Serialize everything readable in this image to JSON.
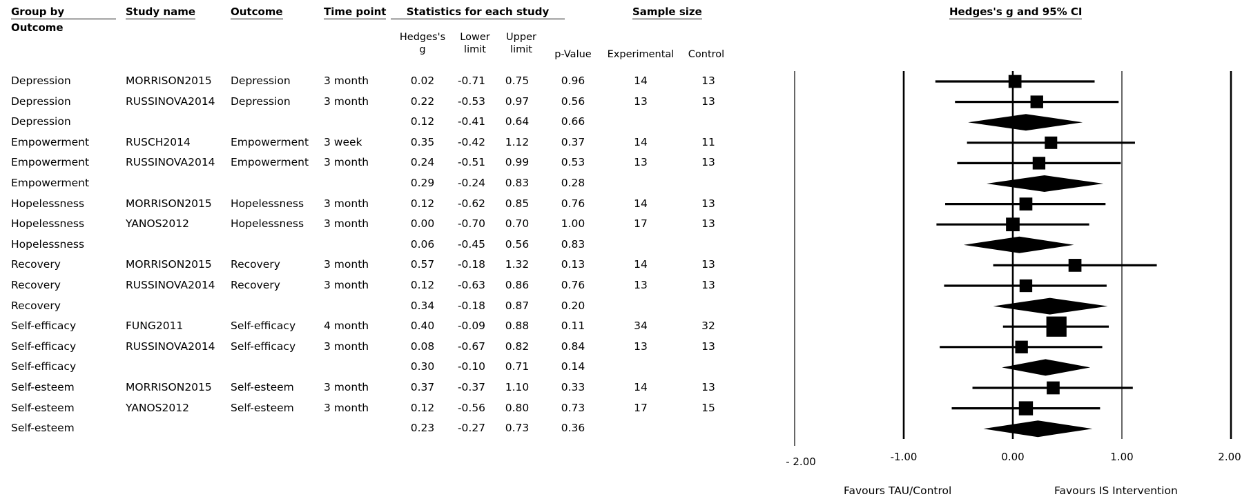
{
  "headers": {
    "group_by": "Group by",
    "outcome_sub": "Outcome",
    "study_name": "Study name",
    "outcome": "Outcome",
    "time_point": "Time point",
    "statistics": "Statistics for each study",
    "sample_size": "Sample size",
    "plot_title": "Hedges's g and 95% CI"
  },
  "subheaders": {
    "hedges": "Hedges's\ng",
    "lower": "Lower\nlimit",
    "upper": "Upper\nlimit",
    "pvalue": "p-Value",
    "experimental": "Experimental",
    "control": "Control"
  },
  "rows": [
    {
      "group": "Depression",
      "study": "MORRISON2015",
      "outcome": "Depression",
      "time": "3 month",
      "g": "0.02",
      "lower": "-0.71",
      "upper": "0.75",
      "p": "0.96",
      "exp": "14",
      "ctrl": "13",
      "summary": false
    },
    {
      "group": "Depression",
      "study": "RUSSINOVA2014",
      "outcome": "Depression",
      "time": "3 month",
      "g": "0.22",
      "lower": "-0.53",
      "upper": "0.97",
      "p": "0.56",
      "exp": "13",
      "ctrl": "13",
      "summary": false
    },
    {
      "group": "Depression",
      "study": "",
      "outcome": "",
      "time": "",
      "g": "0.12",
      "lower": "-0.41",
      "upper": "0.64",
      "p": "0.66",
      "exp": "",
      "ctrl": "",
      "summary": true
    },
    {
      "group": "Empowerment",
      "study": "RUSCH2014",
      "outcome": "Empowerment",
      "time": "3 week",
      "g": "0.35",
      "lower": "-0.42",
      "upper": "1.12",
      "p": "0.37",
      "exp": "14",
      "ctrl": "11",
      "summary": false
    },
    {
      "group": "Empowerment",
      "study": "RUSSINOVA2014",
      "outcome": "Empowerment",
      "time": "3 month",
      "g": "0.24",
      "lower": "-0.51",
      "upper": "0.99",
      "p": "0.53",
      "exp": "13",
      "ctrl": "13",
      "summary": false
    },
    {
      "group": "Empowerment",
      "study": "",
      "outcome": "",
      "time": "",
      "g": "0.29",
      "lower": "-0.24",
      "upper": "0.83",
      "p": "0.28",
      "exp": "",
      "ctrl": "",
      "summary": true
    },
    {
      "group": "Hopelessness",
      "study": "MORRISON2015",
      "outcome": "Hopelessness",
      "time": "3 month",
      "g": "0.12",
      "lower": "-0.62",
      "upper": "0.85",
      "p": "0.76",
      "exp": "14",
      "ctrl": "13",
      "summary": false
    },
    {
      "group": "Hopelessness",
      "study": "YANOS2012",
      "outcome": "Hopelessness",
      "time": "3 month",
      "g": "0.00",
      "lower": "-0.70",
      "upper": "0.70",
      "p": "1.00",
      "exp": "17",
      "ctrl": "13",
      "summary": false
    },
    {
      "group": "Hopelessness",
      "study": "",
      "outcome": "",
      "time": "",
      "g": "0.06",
      "lower": "-0.45",
      "upper": "0.56",
      "p": "0.83",
      "exp": "",
      "ctrl": "",
      "summary": true
    },
    {
      "group": "Recovery",
      "study": "MORRISON2015",
      "outcome": "Recovery",
      "time": "3 month",
      "g": "0.57",
      "lower": "-0.18",
      "upper": "1.32",
      "p": "0.13",
      "exp": "14",
      "ctrl": "13",
      "summary": false
    },
    {
      "group": "Recovery",
      "study": "RUSSINOVA2014",
      "outcome": "Recovery",
      "time": "3 month",
      "g": "0.12",
      "lower": "-0.63",
      "upper": "0.86",
      "p": "0.76",
      "exp": "13",
      "ctrl": "13",
      "summary": false
    },
    {
      "group": "Recovery",
      "study": "",
      "outcome": "",
      "time": "",
      "g": "0.34",
      "lower": "-0.18",
      "upper": "0.87",
      "p": "0.20",
      "exp": "",
      "ctrl": "",
      "summary": true
    },
    {
      "group": "Self-efficacy",
      "study": "FUNG2011",
      "outcome": "Self-efficacy",
      "time": "4 month",
      "g": "0.40",
      "lower": "-0.09",
      "upper": "0.88",
      "p": "0.11",
      "exp": "34",
      "ctrl": "32",
      "summary": false
    },
    {
      "group": "Self-efficacy",
      "study": "RUSSINOVA2014",
      "outcome": "Self-efficacy",
      "time": "3 month",
      "g": "0.08",
      "lower": "-0.67",
      "upper": "0.82",
      "p": "0.84",
      "exp": "13",
      "ctrl": "13",
      "summary": false
    },
    {
      "group": "Self-efficacy",
      "study": "",
      "outcome": "",
      "time": "",
      "g": "0.30",
      "lower": "-0.10",
      "upper": "0.71",
      "p": "0.14",
      "exp": "",
      "ctrl": "",
      "summary": true
    },
    {
      "group": "Self-esteem",
      "study": "MORRISON2015",
      "outcome": "Self-esteem",
      "time": "3 month",
      "g": "0.37",
      "lower": "-0.37",
      "upper": "1.10",
      "p": "0.33",
      "exp": "14",
      "ctrl": "13",
      "summary": false
    },
    {
      "group": "Self-esteem",
      "study": "YANOS2012",
      "outcome": "Self-esteem",
      "time": "3 month",
      "g": "0.12",
      "lower": "-0.56",
      "upper": "0.80",
      "p": "0.73",
      "exp": "17",
      "ctrl": "15",
      "summary": false
    },
    {
      "group": "Self-esteem",
      "study": "",
      "outcome": "",
      "time": "",
      "g": "0.23",
      "lower": "-0.27",
      "upper": "0.73",
      "p": "0.36",
      "exp": "",
      "ctrl": "",
      "summary": true
    }
  ],
  "axis": {
    "tick_labels": [
      "- 2.00",
      "-1.00",
      "0.00",
      "1.00",
      "2.00"
    ],
    "tick_values": [
      -2,
      -1,
      0,
      1,
      2
    ],
    "xlim": [
      -2,
      2
    ]
  },
  "footer": {
    "left": "Favours TAU/Control",
    "right": "Favours IS Intervention"
  },
  "chart_data": {
    "type": "forest",
    "title": "Hedges's g and 95% CI",
    "xlim": [
      -2,
      2
    ],
    "x_ticks": [
      -2,
      -1,
      0,
      1,
      2
    ],
    "reference_line": 0,
    "categories": [
      "Depression",
      "Depression",
      "Depression",
      "Empowerment",
      "Empowerment",
      "Empowerment",
      "Hopelessness",
      "Hopelessness",
      "Hopelessness",
      "Recovery",
      "Recovery",
      "Recovery",
      "Self-efficacy",
      "Self-efficacy",
      "Self-efficacy",
      "Self-esteem",
      "Self-esteem",
      "Self-esteem"
    ],
    "estimates": [
      0.02,
      0.22,
      0.12,
      0.35,
      0.24,
      0.29,
      0.12,
      0.0,
      0.06,
      0.57,
      0.12,
      0.34,
      0.4,
      0.08,
      0.3,
      0.37,
      0.12,
      0.23
    ],
    "lower": [
      -0.71,
      -0.53,
      -0.41,
      -0.42,
      -0.51,
      -0.24,
      -0.62,
      -0.7,
      -0.45,
      -0.18,
      -0.63,
      -0.18,
      -0.09,
      -0.67,
      -0.1,
      -0.37,
      -0.56,
      -0.27
    ],
    "upper": [
      0.75,
      0.97,
      0.64,
      1.12,
      0.99,
      0.83,
      0.85,
      0.7,
      0.56,
      1.32,
      0.86,
      0.87,
      0.88,
      0.82,
      0.71,
      1.1,
      0.8,
      0.73
    ],
    "is_summary": [
      false,
      false,
      true,
      false,
      false,
      true,
      false,
      false,
      true,
      false,
      false,
      true,
      false,
      false,
      true,
      false,
      false,
      true
    ],
    "weights": [
      27,
      26,
      0,
      25,
      26,
      0,
      27,
      30,
      0,
      27,
      26,
      0,
      66,
      26,
      0,
      27,
      32,
      0
    ]
  }
}
